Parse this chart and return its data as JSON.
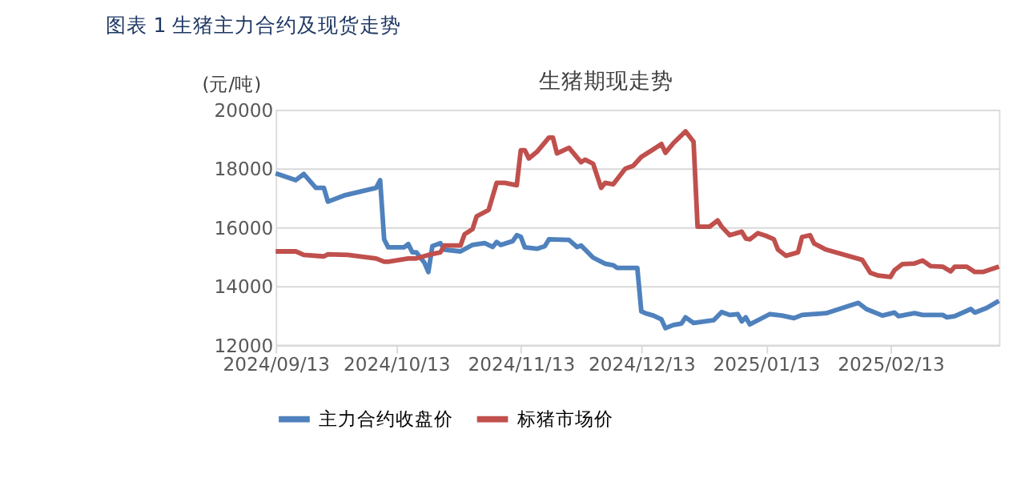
{
  "chart_data": {
    "type": "line",
    "title": "图表 1 生猪主力合约及现货走势",
    "subtitle": "生猪期现走势",
    "ylabel": "(元/吨)",
    "xlim": [
      "2024-09-13",
      "2025-03-12"
    ],
    "xticks": [
      {
        "value": "2024-09-13",
        "label": "2024/09/13"
      },
      {
        "value": "2024-10-13",
        "label": "2024/10/13"
      },
      {
        "value": "2024-11-13",
        "label": "2024/11/13"
      },
      {
        "value": "2024-12-13",
        "label": "2024/12/13"
      },
      {
        "value": "2025-01-13",
        "label": "2025/01/13"
      },
      {
        "value": "2025-02-13",
        "label": "2025/02/13"
      }
    ],
    "ylim": [
      12000,
      20000
    ],
    "yticks": [
      12000,
      14000,
      16000,
      18000,
      20000
    ],
    "grid": "y",
    "legend": "bottom",
    "line_style": "solid",
    "marker": "none",
    "series": [
      {
        "name": "主力合约收盘价",
        "color": "#4f81bd",
        "x": [
          "2024-09-13",
          "2024-09-18",
          "2024-09-20",
          "2024-09-23",
          "2024-09-25",
          "2024-09-26",
          "2024-09-30",
          "2024-10-08",
          "2024-10-09",
          "2024-10-10",
          "2024-10-11",
          "2024-10-15",
          "2024-10-16",
          "2024-10-17",
          "2024-10-18",
          "2024-10-20",
          "2024-10-21",
          "2024-10-22",
          "2024-10-24",
          "2024-10-25",
          "2024-10-29",
          "2024-10-31",
          "2024-11-01",
          "2024-11-04",
          "2024-11-06",
          "2024-11-07",
          "2024-11-08",
          "2024-11-11",
          "2024-11-12",
          "2024-11-13",
          "2024-11-14",
          "2024-11-17",
          "2024-11-19",
          "2024-11-20",
          "2024-11-25",
          "2024-11-27",
          "2024-11-28",
          "2024-12-01",
          "2024-12-04",
          "2024-12-06",
          "2024-12-07",
          "2024-12-12",
          "2024-12-13",
          "2024-12-14",
          "2024-12-16",
          "2024-12-18",
          "2024-12-19",
          "2024-12-21",
          "2024-12-23",
          "2024-12-24",
          "2024-12-26",
          "2024-12-31",
          "2025-01-02",
          "2025-01-04",
          "2025-01-06",
          "2025-01-07",
          "2025-01-08",
          "2025-01-09",
          "2025-01-11",
          "2025-01-14",
          "2025-01-17",
          "2025-01-20",
          "2025-01-22",
          "2025-01-28",
          "2025-02-05",
          "2025-02-07",
          "2025-02-11",
          "2025-02-14",
          "2025-02-15",
          "2025-02-19",
          "2025-02-21",
          "2025-02-26",
          "2025-02-27",
          "2025-03-01",
          "2025-03-05",
          "2025-03-06",
          "2025-03-09",
          "2025-03-12"
        ],
        "values": [
          17830,
          17600,
          17810,
          17340,
          17340,
          16870,
          17080,
          17340,
          17600,
          15590,
          15320,
          15320,
          15430,
          15150,
          15150,
          14800,
          14480,
          15360,
          15460,
          15240,
          15180,
          15330,
          15400,
          15460,
          15330,
          15500,
          15400,
          15530,
          15730,
          15680,
          15320,
          15270,
          15360,
          15590,
          15570,
          15330,
          15380,
          14970,
          14760,
          14710,
          14620,
          14620,
          13140,
          13080,
          13000,
          12870,
          12570,
          12680,
          12730,
          12940,
          12750,
          12840,
          13120,
          13020,
          13050,
          12800,
          12940,
          12700,
          12840,
          13050,
          13000,
          12910,
          13020,
          13080,
          13430,
          13220,
          13000,
          13100,
          12980,
          13080,
          13020,
          13020,
          12940,
          12980,
          13220,
          13100,
          13260,
          13500
        ]
      },
      {
        "name": "标猪市场价",
        "color": "#c0504d",
        "x": [
          "2024-09-13",
          "2024-09-18",
          "2024-09-20",
          "2024-09-25",
          "2024-09-26",
          "2024-10-01",
          "2024-10-08",
          "2024-10-10",
          "2024-10-11",
          "2024-10-16",
          "2024-10-18",
          "2024-10-21",
          "2024-10-24",
          "2024-10-25",
          "2024-10-29",
          "2024-10-30",
          "2024-11-01",
          "2024-11-02",
          "2024-11-05",
          "2024-11-07",
          "2024-11-09",
          "2024-11-12",
          "2024-11-13",
          "2024-11-14",
          "2024-11-15",
          "2024-11-17",
          "2024-11-20",
          "2024-11-21",
          "2024-11-22",
          "2024-11-25",
          "2024-11-28",
          "2024-11-29",
          "2024-12-01",
          "2024-12-03",
          "2024-12-04",
          "2024-12-06",
          "2024-12-09",
          "2024-12-11",
          "2024-12-13",
          "2024-12-16",
          "2024-12-18",
          "2024-12-19",
          "2024-12-21",
          "2024-12-24",
          "2024-12-26",
          "2024-12-27",
          "2024-12-30",
          "2025-01-01",
          "2025-01-02",
          "2025-01-04",
          "2025-01-07",
          "2025-01-08",
          "2025-01-09",
          "2025-01-11",
          "2025-01-13",
          "2025-01-15",
          "2025-01-16",
          "2025-01-18",
          "2025-01-21",
          "2025-01-22",
          "2025-01-24",
          "2025-01-25",
          "2025-01-28",
          "2025-02-06",
          "2025-02-08",
          "2025-02-10",
          "2025-02-13",
          "2025-02-14",
          "2025-02-16",
          "2025-02-19",
          "2025-02-21",
          "2025-02-23",
          "2025-02-26",
          "2025-02-28",
          "2025-03-01",
          "2025-03-04",
          "2025-03-06",
          "2025-03-08",
          "2025-03-12"
        ],
        "values": [
          15180,
          15180,
          15060,
          15010,
          15080,
          15060,
          14940,
          14830,
          14830,
          14940,
          14940,
          15060,
          15150,
          15380,
          15380,
          15760,
          15940,
          16370,
          16590,
          17510,
          17510,
          17430,
          18620,
          18620,
          18340,
          18560,
          19050,
          19050,
          18510,
          18700,
          18210,
          18300,
          18160,
          17340,
          17510,
          17460,
          17990,
          18090,
          18390,
          18650,
          18830,
          18530,
          18860,
          19260,
          18910,
          16020,
          16020,
          16230,
          16020,
          15730,
          15850,
          15620,
          15590,
          15800,
          15710,
          15590,
          15240,
          15030,
          15150,
          15670,
          15730,
          15450,
          15240,
          14890,
          14450,
          14360,
          14310,
          14540,
          14750,
          14770,
          14870,
          14680,
          14660,
          14500,
          14660,
          14660,
          14480,
          14480,
          14660
        ]
      }
    ]
  }
}
